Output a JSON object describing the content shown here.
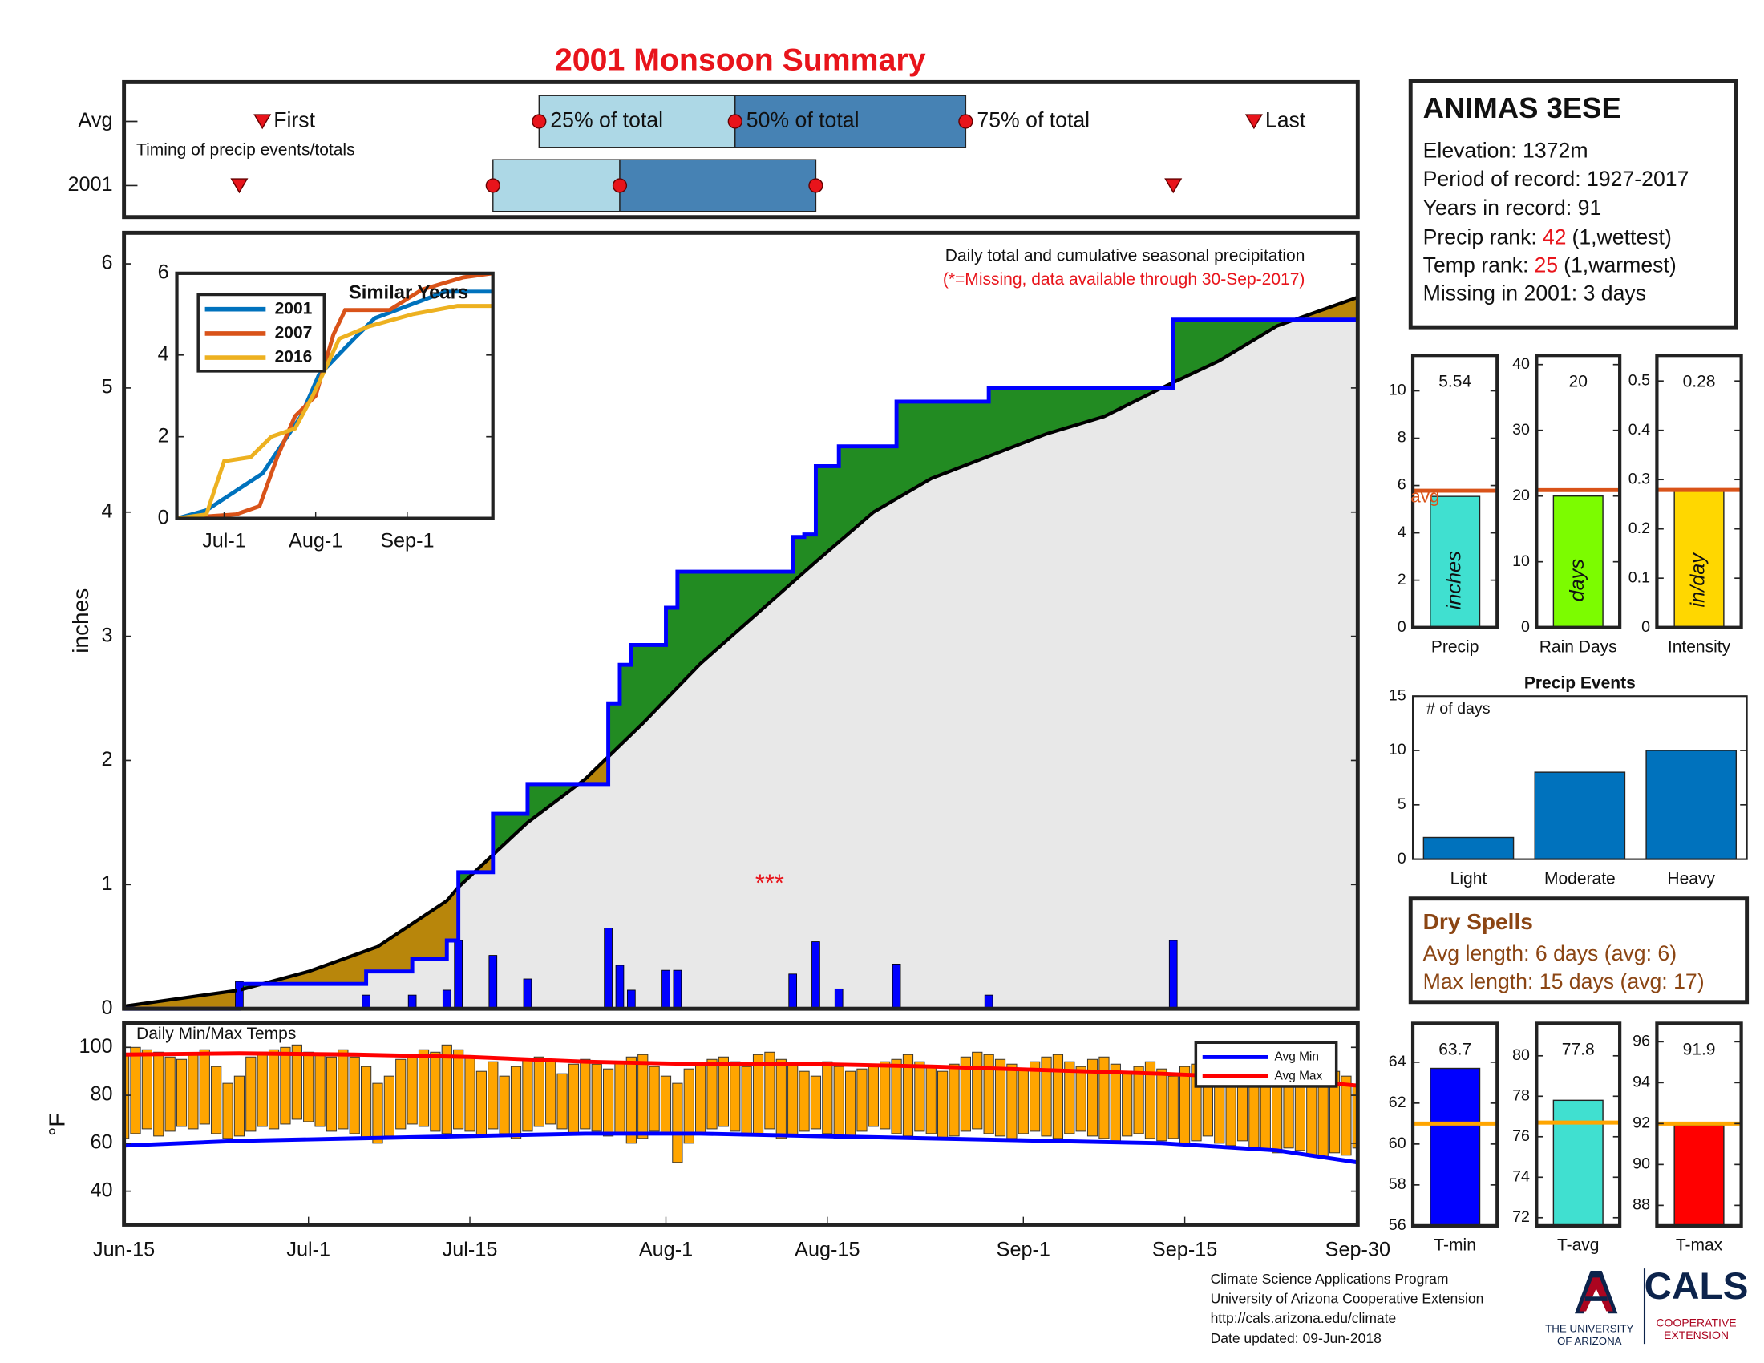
{
  "title": "2001 Monsoon Summary",
  "station": {
    "name": "ANIMAS 3ESE",
    "lines": [
      "Elevation: 1372m",
      "Period of record: 1927-2017",
      "Years in record: 91"
    ],
    "ranks": [
      {
        "label": "Precip rank:",
        "value": 42,
        "note": "(1,wettest)"
      },
      {
        "label": "Temp rank:",
        "value": 25,
        "note": "(1,warmest)"
      }
    ],
    "missing": "Missing in 2001: 3 days",
    "rank_color": "#e8141b"
  },
  "dry_spells": {
    "title": "Dry Spells",
    "lines": [
      "Avg length: 6 days (avg: 6)",
      "Max length: 15 days (avg: 17)"
    ],
    "color": "#8b4513"
  },
  "footer": [
    "Climate Science Applications Program",
    "University of Arizona Cooperative Extension",
    "http://cals.arizona.edu/climate",
    "Date updated: 09-Jun-2018"
  ],
  "logos": {
    "ua": [
      "THE UNIVERSITY",
      "OF ARIZONA"
    ],
    "cals": "CALS",
    "extension": [
      "COOPERATIVE",
      "EXTENSION"
    ]
  },
  "chart_data": [
    {
      "type": "timeline",
      "annotation": "Timing of precip events/totals",
      "xlim": [
        0,
        107
      ],
      "labels": [
        "First",
        "25% of total",
        "50% of total",
        "75% of total",
        "Last"
      ],
      "rows": [
        {
          "name": "Avg",
          "values": [
            12,
            36,
            53,
            73,
            98
          ]
        },
        {
          "name": "2001",
          "values": [
            10,
            32,
            43,
            60,
            91
          ]
        }
      ],
      "colors": {
        "marker": "#e8141b",
        "first_half": "#add8e6",
        "second_half": "#4682b4"
      }
    },
    {
      "type": "cumulative",
      "title": "Daily total and cumulative seasonal precipitation",
      "subtitle": "(*=Missing, data available through 30-Sep-2017)",
      "subtitle_color": "#e8141b",
      "ylabel": "inches",
      "xlim": [
        0,
        107
      ],
      "ylim": [
        0,
        6.25
      ],
      "yticks": [
        0,
        1,
        2,
        3,
        4,
        5,
        6
      ],
      "observed": {
        "x": [
          0,
          10,
          21,
          25,
          28,
          29,
          32,
          35,
          42,
          43,
          44,
          47,
          48,
          58,
          59,
          60,
          62,
          67,
          75,
          91,
          107
        ],
        "values": [
          0,
          0.2,
          0.3,
          0.4,
          0.55,
          1.1,
          1.57,
          1.81,
          2.46,
          2.77,
          2.93,
          3.23,
          3.52,
          3.8,
          3.82,
          4.37,
          4.53,
          4.89,
          5.0,
          5.55,
          5.55
        ],
        "color": "#0000ff"
      },
      "average": {
        "x": [
          0,
          10,
          16,
          22,
          28,
          29,
          35,
          40,
          45,
          50,
          55,
          60,
          65,
          70,
          75,
          80,
          85,
          90,
          95,
          100,
          107
        ],
        "values": [
          0.02,
          0.15,
          0.3,
          0.5,
          0.87,
          0.98,
          1.5,
          1.85,
          2.3,
          2.78,
          3.19,
          3.6,
          4.0,
          4.27,
          4.45,
          4.63,
          4.77,
          5.0,
          5.22,
          5.5,
          5.73
        ],
        "color": "#000000"
      },
      "daily": {
        "x": [
          10,
          21,
          25,
          28,
          29,
          32,
          35,
          42,
          43,
          44,
          47,
          48,
          58,
          60,
          62,
          67,
          75,
          91
        ],
        "values": [
          0.22,
          0.11,
          0.11,
          0.15,
          0.55,
          0.43,
          0.24,
          0.65,
          0.35,
          0.15,
          0.31,
          0.31,
          0.28,
          0.54,
          0.16,
          0.36,
          0.11,
          0.55
        ],
        "color": "#0000ff"
      },
      "above_color": "#228b22",
      "below_color": "#b8860b",
      "fill_color": "#e8e8e8",
      "missing_marker": {
        "x": 56,
        "y": 1.0,
        "label": "***",
        "color": "#e8141b"
      }
    },
    {
      "type": "line",
      "title": "Similar Years",
      "xlim": [
        0,
        107
      ],
      "ylim": [
        0,
        6
      ],
      "yticks": [
        0,
        2,
        4,
        6
      ],
      "xticks": [
        {
          "value": 16,
          "label": "Jul-1"
        },
        {
          "value": 47,
          "label": "Aug-1"
        },
        {
          "value": 78,
          "label": "Sep-1"
        }
      ],
      "legend": "upper left",
      "series": [
        {
          "name": "2001",
          "color": "#0072bd",
          "x": [
            0,
            10,
            29,
            42,
            48,
            60,
            67,
            91,
            107
          ],
          "values": [
            0,
            0.2,
            1.1,
            2.5,
            3.5,
            4.4,
            4.9,
            5.55,
            5.55
          ]
        },
        {
          "name": "2007",
          "color": "#d95319",
          "x": [
            0,
            20,
            28,
            34,
            40,
            47,
            53,
            57,
            72,
            83,
            97,
            107
          ],
          "values": [
            0,
            0.1,
            0.3,
            1.5,
            2.5,
            3.0,
            4.5,
            5.1,
            5.1,
            5.6,
            5.9,
            6.0
          ]
        },
        {
          "name": "2016",
          "color": "#edb120",
          "x": [
            0,
            10,
            16,
            25,
            32,
            40,
            46,
            55,
            65,
            80,
            95,
            107
          ],
          "values": [
            0,
            0.1,
            1.4,
            1.5,
            2.0,
            2.2,
            3.0,
            4.4,
            4.7,
            5.0,
            5.2,
            5.2
          ]
        }
      ]
    },
    {
      "type": "stat-bars",
      "avg_label": "avg",
      "avg_color": "#d95319",
      "panels": [
        {
          "name": "Precip",
          "unit": "inches",
          "value": 5.54,
          "avg": 5.78,
          "ylim": [
            0,
            11.5
          ],
          "yticks": [
            0,
            2,
            4,
            6,
            8,
            10
          ],
          "color": "#40e0d0"
        },
        {
          "name": "Rain Days",
          "unit": "days",
          "value": 20,
          "avg": 20.9,
          "ylim": [
            0,
            41.4
          ],
          "yticks": [
            0,
            10,
            20,
            30,
            40
          ],
          "color": "#7cfc00"
        },
        {
          "name": "Intensity",
          "unit": "in/day",
          "value": 0.28,
          "avg": 0.279,
          "ylim": [
            0,
            0.552
          ],
          "yticks": [
            0,
            0.1,
            0.2,
            0.3,
            0.4,
            0.5
          ],
          "color": "#ffd700"
        }
      ]
    },
    {
      "type": "bar",
      "title": "Precip Events",
      "annotation": "# of days",
      "categories": [
        "Light",
        "Moderate",
        "Heavy"
      ],
      "values": [
        2,
        8,
        10
      ],
      "color": "#0072bd",
      "ylim": [
        0,
        15
      ],
      "yticks": [
        0,
        5,
        10,
        15
      ]
    },
    {
      "type": "range-bar",
      "title": "Daily Min/Max Temps",
      "ylabel": "°F",
      "xlim": [
        0,
        107
      ],
      "ylim": [
        26,
        110
      ],
      "yticks": [
        40,
        60,
        80,
        100
      ],
      "bar_color": "#ffa500",
      "legend": "upper right",
      "xticks": [
        {
          "value": 0,
          "label": "Jun-15"
        },
        {
          "value": 16,
          "label": "Jul-1"
        },
        {
          "value": 30,
          "label": "Jul-15"
        },
        {
          "value": 47,
          "label": "Aug-1"
        },
        {
          "value": 61,
          "label": "Aug-15"
        },
        {
          "value": 78,
          "label": "Sep-1"
        },
        {
          "value": 92,
          "label": "Sep-15"
        },
        {
          "value": 107,
          "label": "Sep-30"
        }
      ],
      "max": [
        97,
        100,
        99,
        98,
        96,
        95,
        97,
        99,
        92,
        85,
        88,
        96,
        98,
        99,
        100,
        101,
        98,
        97,
        96,
        99,
        96,
        92,
        85,
        88,
        95,
        97,
        99,
        98,
        101,
        99,
        96,
        90,
        94,
        88,
        92,
        95,
        96,
        94,
        89,
        93,
        95,
        93,
        91,
        94,
        96,
        97,
        92,
        88,
        85,
        91,
        93,
        95,
        96,
        94,
        92,
        97,
        98,
        95,
        93,
        90,
        88,
        94,
        92,
        90,
        91,
        93,
        94,
        95,
        97,
        94,
        92,
        90,
        93,
        96,
        98,
        97,
        95,
        93,
        91,
        94,
        96,
        97,
        94,
        92,
        95,
        96,
        93,
        90,
        92,
        94,
        91,
        88,
        92,
        93,
        95,
        91,
        89,
        90,
        88,
        87,
        85,
        89,
        90,
        88,
        86,
        90,
        88,
        84
      ],
      "min": [
        62,
        64,
        66,
        63,
        65,
        67,
        66,
        68,
        64,
        62,
        63,
        65,
        67,
        66,
        68,
        70,
        69,
        67,
        65,
        66,
        64,
        62,
        60,
        63,
        66,
        68,
        67,
        65,
        64,
        66,
        65,
        63,
        66,
        64,
        62,
        65,
        67,
        68,
        66,
        64,
        66,
        65,
        63,
        64,
        60,
        62,
        65,
        64,
        52,
        60,
        64,
        66,
        67,
        65,
        63,
        64,
        66,
        62,
        63,
        65,
        66,
        64,
        62,
        63,
        65,
        67,
        66,
        64,
        63,
        65,
        64,
        62,
        63,
        65,
        66,
        64,
        63,
        62,
        64,
        65,
        63,
        62,
        64,
        65,
        63,
        62,
        61,
        63,
        64,
        62,
        61,
        62,
        60,
        61,
        63,
        60,
        59,
        61,
        58,
        57,
        56,
        58,
        57,
        55,
        54,
        56,
        55,
        58
      ],
      "series": [
        {
          "name": "Avg Min",
          "color": "#0000ff",
          "x": [
            0,
            10,
            20,
            30,
            40,
            50,
            60,
            70,
            80,
            90,
            100,
            107
          ],
          "values": [
            59,
            61,
            62,
            63,
            64,
            64,
            63,
            62,
            61,
            60,
            57,
            52
          ]
        },
        {
          "name": "Avg Max",
          "color": "#ff0000",
          "x": [
            0,
            10,
            20,
            30,
            40,
            50,
            60,
            70,
            80,
            90,
            100,
            107
          ],
          "values": [
            97,
            97.5,
            97,
            96,
            94,
            93,
            93,
            92,
            90.5,
            89,
            87,
            84
          ]
        }
      ]
    },
    {
      "type": "stat-bars",
      "avg_color": "#ffa500",
      "panels": [
        {
          "name": "T-min",
          "value": 63.7,
          "avg": 61,
          "ylim": [
            56,
            65.9
          ],
          "yticks": [
            56,
            58,
            60,
            62,
            64
          ],
          "color": "#0000ff"
        },
        {
          "name": "T-avg",
          "value": 77.8,
          "avg": 76.7,
          "ylim": [
            71.6,
            81.6
          ],
          "yticks": [
            72,
            74,
            76,
            78,
            80
          ],
          "color": "#40e0d0"
        },
        {
          "name": "T-max",
          "value": 91.9,
          "avg": 92,
          "ylim": [
            87,
            96.9
          ],
          "yticks": [
            88,
            90,
            92,
            94,
            96
          ],
          "color": "#ff0000"
        }
      ]
    }
  ]
}
